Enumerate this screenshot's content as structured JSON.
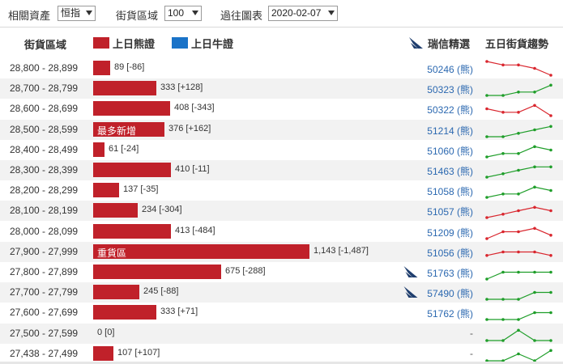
{
  "toolbar": {
    "related_asset_label": "相關資產",
    "related_asset_value": "恒指",
    "street_range_label": "街貨區域",
    "street_range_value": "100",
    "past_chart_label": "過往圖表",
    "past_chart_value": "2020-02-07"
  },
  "header": {
    "range_label": "街貨區域",
    "bear_label": "上日熊證",
    "bull_label": "上日牛證",
    "recommend_label": "瑞信精選",
    "trend_label": "五日街貨趨勢"
  },
  "colors": {
    "bear": "#c0212a",
    "bull": "#1a73c8",
    "up": "#1f9e2a",
    "down": "#d9262e",
    "code": "#2b68b0"
  },
  "rows": [
    {
      "range": "28,800 - 28,899",
      "bar_value": 89,
      "value_text": "89 [-86]",
      "tag": "",
      "code": "50246 (熊)",
      "recommended": false,
      "trend": [
        5,
        4,
        4,
        3,
        1
      ],
      "trend_dir": "down"
    },
    {
      "range": "28,700 - 28,799",
      "bar_value": 333,
      "value_text": "333 [+128]",
      "tag": "",
      "code": "50323 (熊)",
      "recommended": false,
      "trend": [
        1,
        1,
        2,
        2,
        4
      ],
      "trend_dir": "up"
    },
    {
      "range": "28,600 - 28,699",
      "bar_value": 408,
      "value_text": "408 [-343]",
      "tag": "",
      "code": "50322 (熊)",
      "recommended": false,
      "trend": [
        3,
        2,
        2,
        4,
        1
      ],
      "trend_dir": "down"
    },
    {
      "range": "28,500 - 28,599",
      "bar_value": 376,
      "value_text": "376 [+162]",
      "tag": "最多新增",
      "code": "51214 (熊)",
      "recommended": false,
      "trend": [
        1,
        1,
        2,
        3,
        4
      ],
      "trend_dir": "up"
    },
    {
      "range": "28,400 - 28,499",
      "bar_value": 61,
      "value_text": "61 [-24]",
      "tag": "",
      "code": "51060 (熊)",
      "recommended": false,
      "trend": [
        1,
        2,
        2,
        4,
        3
      ],
      "trend_dir": "up"
    },
    {
      "range": "28,300 - 28,399",
      "bar_value": 410,
      "value_text": "410 [-11]",
      "tag": "",
      "code": "51463 (熊)",
      "recommended": false,
      "trend": [
        1,
        2,
        3,
        4,
        4
      ],
      "trend_dir": "up"
    },
    {
      "range": "28,200 - 28,299",
      "bar_value": 137,
      "value_text": "137 [-35]",
      "tag": "",
      "code": "51058 (熊)",
      "recommended": false,
      "trend": [
        1,
        2,
        2,
        4,
        3
      ],
      "trend_dir": "up"
    },
    {
      "range": "28,100 - 28,199",
      "bar_value": 234,
      "value_text": "234 [-304]",
      "tag": "",
      "code": "51057 (熊)",
      "recommended": false,
      "trend": [
        1,
        2,
        3,
        4,
        3
      ],
      "trend_dir": "down"
    },
    {
      "range": "28,000 - 28,099",
      "bar_value": 413,
      "value_text": "413 [-484]",
      "tag": "",
      "code": "51209 (熊)",
      "recommended": false,
      "trend": [
        1,
        3,
        3,
        4,
        2
      ],
      "trend_dir": "down"
    },
    {
      "range": "27,900 - 27,999",
      "bar_value": 1143,
      "value_text": "1,143 [-1,487]",
      "tag": "重貨區",
      "code": "51056 (熊)",
      "recommended": false,
      "trend": [
        2,
        3,
        3,
        3,
        2
      ],
      "trend_dir": "down"
    },
    {
      "range": "27,800 - 27,899",
      "bar_value": 675,
      "value_text": "675 [-288]",
      "tag": "",
      "code": "51763 (熊)",
      "recommended": true,
      "trend": [
        1,
        3,
        3,
        3,
        3
      ],
      "trend_dir": "up"
    },
    {
      "range": "27,700 - 27,799",
      "bar_value": 245,
      "value_text": "245 [-88]",
      "tag": "",
      "code": "57490 (熊)",
      "recommended": true,
      "trend": [
        1,
        1,
        1,
        3,
        3
      ],
      "trend_dir": "up"
    },
    {
      "range": "27,600 - 27,699",
      "bar_value": 333,
      "value_text": "333 [+71]",
      "tag": "",
      "code": "51762 (熊)",
      "recommended": false,
      "trend": [
        1,
        1,
        1,
        3,
        3
      ],
      "trend_dir": "up"
    },
    {
      "range": "27,500 - 27,599",
      "bar_value": 0,
      "value_text": "0 [0]",
      "tag": "",
      "code": "-",
      "recommended": false,
      "trend": [
        1,
        1,
        4,
        1,
        1
      ],
      "trend_dir": "up"
    },
    {
      "range": "27,438 - 27,499",
      "bar_value": 107,
      "value_text": "107 [+107]",
      "tag": "",
      "code": "-",
      "recommended": false,
      "trend": [
        1,
        1,
        3,
        1,
        4
      ],
      "trend_dir": "up"
    }
  ]
}
